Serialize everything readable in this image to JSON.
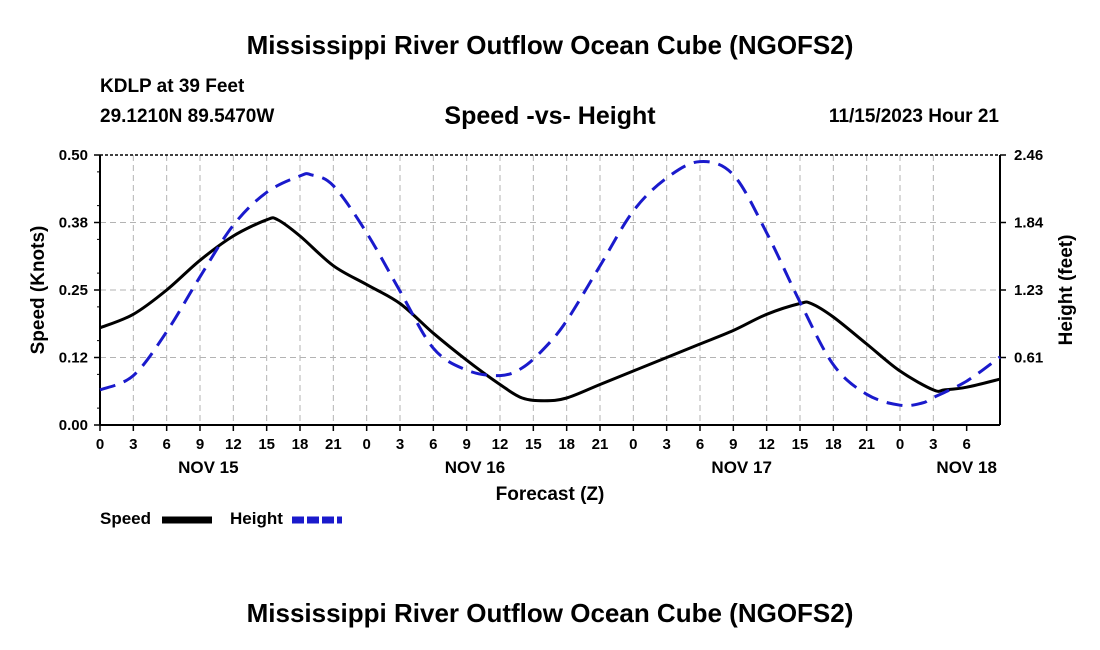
{
  "titles": {
    "top": "Mississippi River Outflow Ocean Cube (NGOFS2)",
    "bottom": "Mississippi River Outflow Ocean Cube (NGOFS2)"
  },
  "header": {
    "station": "KDLP at 39 Feet",
    "coords": "29.1210N  89.5470W",
    "datetime": "11/15/2023 Hour 21"
  },
  "colors": {
    "speed": "#000000",
    "height": "#1a1acc",
    "grid": "#b3b3b3"
  },
  "chart_data": {
    "type": "line",
    "title": "Speed -vs- Height",
    "xlabel": "Forecast (Z)",
    "ylabel": "Speed (Knots)",
    "ylabel_right": "Height (feet)",
    "x_range_hours": [
      0,
      81
    ],
    "ylim": [
      0.0,
      0.5
    ],
    "ylim_right": [
      0.0,
      2.46
    ],
    "yticks": [
      "0.00",
      "0.12",
      "0.25",
      "0.38",
      "0.50"
    ],
    "yticks_values": [
      0.0,
      0.125,
      0.25,
      0.375,
      0.5
    ],
    "yticks_right": [
      "0.61",
      "1.23",
      "1.84",
      "2.46"
    ],
    "yticks_right_values": [
      0.615,
      1.23,
      1.845,
      2.46
    ],
    "xtick_labels": [
      "0",
      "3",
      "6",
      "9",
      "12",
      "15",
      "18",
      "21",
      "0",
      "3",
      "6",
      "9",
      "12",
      "15",
      "18",
      "21",
      "0",
      "3",
      "6",
      "9",
      "12",
      "15",
      "18",
      "21",
      "0",
      "3",
      "6"
    ],
    "date_labels": [
      {
        "label": "NOV 15",
        "hour": 9.75
      },
      {
        "label": "NOV 16",
        "hour": 33.75
      },
      {
        "label": "NOV 17",
        "hour": 57.75
      },
      {
        "label": "NOV 18",
        "hour": 78
      }
    ],
    "series": [
      {
        "name": "Speed",
        "axis": "left",
        "style": "solid",
        "x": [
          0,
          3,
          6,
          9,
          12,
          15,
          16,
          18,
          21,
          24,
          27,
          30,
          33,
          36,
          38,
          40,
          42,
          45,
          48,
          51,
          54,
          57,
          60,
          63,
          64,
          66,
          69,
          72,
          75,
          76,
          78,
          81
        ],
        "values": [
          0.18,
          0.205,
          0.25,
          0.305,
          0.35,
          0.38,
          0.38,
          0.35,
          0.295,
          0.26,
          0.225,
          0.17,
          0.12,
          0.075,
          0.05,
          0.045,
          0.05,
          0.075,
          0.1,
          0.125,
          0.15,
          0.175,
          0.205,
          0.225,
          0.225,
          0.2,
          0.15,
          0.1,
          0.065,
          0.065,
          0.07,
          0.085
        ]
      },
      {
        "name": "Height",
        "axis": "right",
        "style": "dashed",
        "x": [
          0,
          3,
          6,
          9,
          12,
          15,
          18,
          19,
          21,
          24,
          27,
          30,
          33,
          36,
          38,
          40,
          42,
          45,
          48,
          51,
          54,
          57,
          60,
          63,
          66,
          69,
          72,
          74,
          75,
          78,
          81
        ],
        "values": [
          0.32,
          0.45,
          0.85,
          1.35,
          1.82,
          2.12,
          2.27,
          2.28,
          2.18,
          1.75,
          1.22,
          0.7,
          0.5,
          0.45,
          0.52,
          0.7,
          0.95,
          1.45,
          1.95,
          2.25,
          2.4,
          2.28,
          1.75,
          1.12,
          0.55,
          0.28,
          0.18,
          0.2,
          0.25,
          0.4,
          0.62
        ]
      }
    ],
    "legend": [
      {
        "label": "Speed",
        "style": "solid"
      },
      {
        "label": "Height",
        "style": "dashed"
      }
    ],
    "legend_position": "bottom-left",
    "grid": true
  }
}
